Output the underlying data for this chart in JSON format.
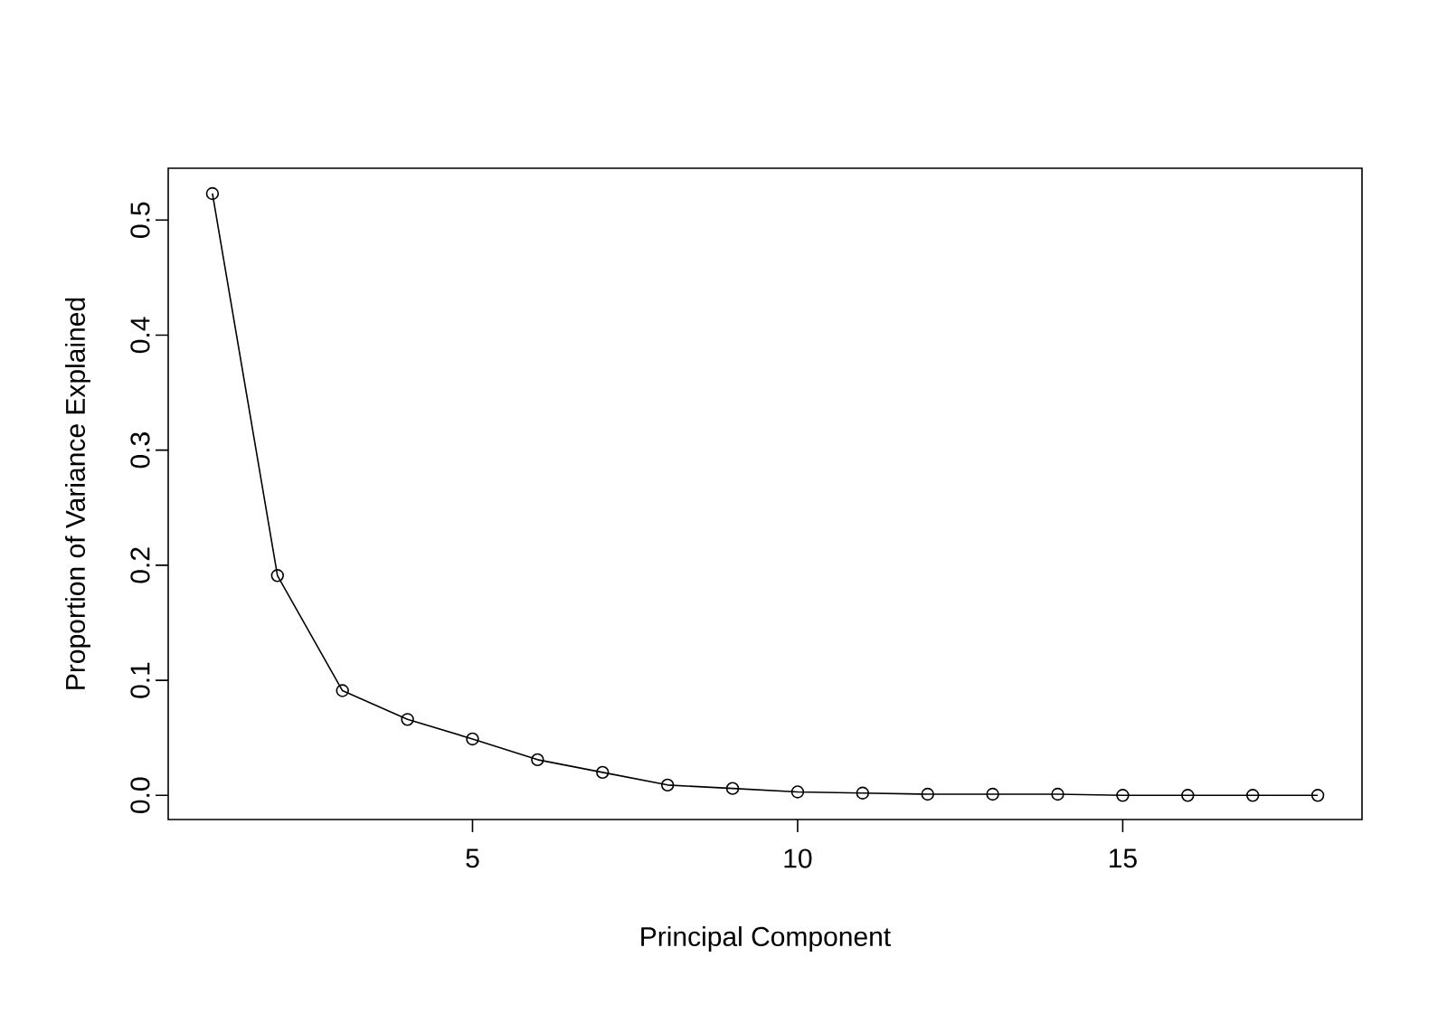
{
  "chart_data": {
    "type": "line",
    "xlabel": "Principal Component",
    "ylabel": "Proportion of Variance Explained",
    "x": [
      1,
      2,
      3,
      4,
      5,
      6,
      7,
      8,
      9,
      10,
      11,
      12,
      13,
      14,
      15,
      16,
      17,
      18
    ],
    "series": [
      {
        "color": "#000000",
        "values": [
          0.523,
          0.191,
          0.091,
          0.066,
          0.049,
          0.031,
          0.02,
          0.009,
          0.006,
          0.003,
          0.002,
          0.001,
          0.001,
          0.001,
          0,
          0,
          0,
          0
        ]
      }
    ],
    "xlim": [
      0.32,
      18.68
    ],
    "ylim": [
      -0.021,
      0.545
    ],
    "xticks": [
      5,
      10,
      15
    ],
    "yticks": [
      {
        "value": 0,
        "label": "0.0"
      },
      0.1,
      0.2,
      0.3,
      0.4,
      0.5
    ],
    "marker": "circle",
    "line_style": "solid"
  }
}
